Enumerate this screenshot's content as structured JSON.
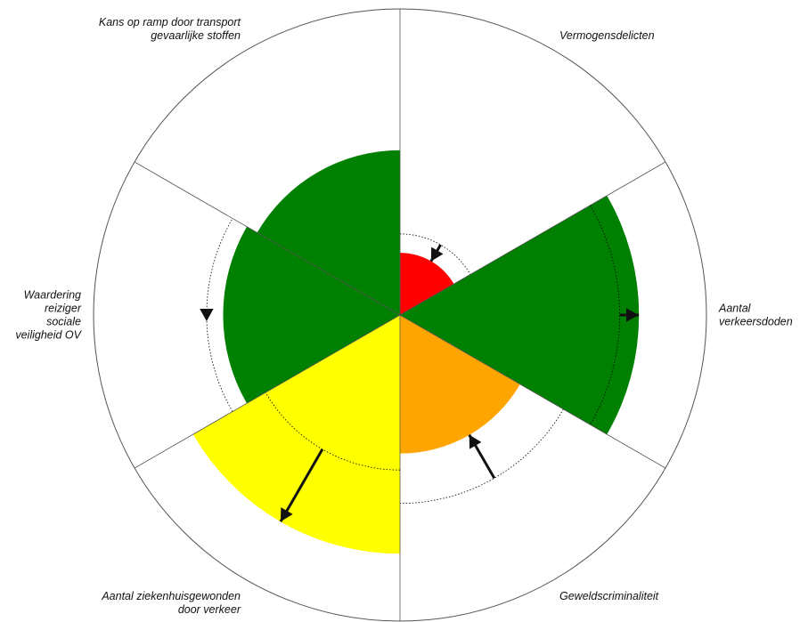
{
  "chart_data": {
    "type": "polar-area",
    "title": "",
    "scale_max": 1.0,
    "colors": {
      "green": "#008000",
      "red": "#ff0000",
      "orange": "#ffa500",
      "yellow": "#ffff00",
      "outline": "#555555",
      "arrow": "#111111"
    },
    "segments": [
      {
        "label_lines": [
          "Vermogensdelicten"
        ],
        "value": 0.26,
        "target": 0.34,
        "color": "#ff0000",
        "arrow": "up"
      },
      {
        "label_lines": [
          "Aantal",
          "verkeersdoden"
        ],
        "value": 1.0,
        "target": 0.92,
        "color": "#008000",
        "arrow": "down"
      },
      {
        "label_lines": [
          "Geweldscriminaliteit"
        ],
        "value": 0.58,
        "target": 0.79,
        "color": "#ffa500",
        "arrow": "down"
      },
      {
        "label_lines": [
          "Aantal ziekenhuisgewonden",
          "door verkeer"
        ],
        "value": 1.0,
        "target": 0.65,
        "color": "#ffff00",
        "arrow": "up"
      },
      {
        "label_lines": [
          "Waardering",
          "reiziger",
          "sociale",
          "veiligheid OV"
        ],
        "value": 0.74,
        "target": 0.81,
        "color": "#008000",
        "arrow": "down"
      },
      {
        "label_lines": [
          "Kans op ramp door transport",
          "gevaarlijke stoffen"
        ],
        "value": 0.69,
        "target": null,
        "color": "#008000",
        "arrow": "none"
      }
    ]
  }
}
